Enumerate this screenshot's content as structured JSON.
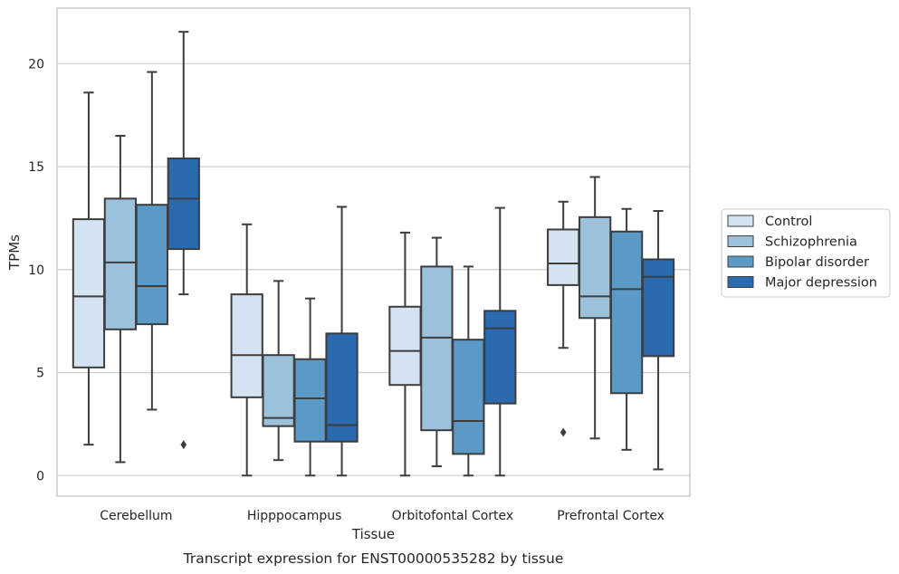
{
  "chart_data": {
    "type": "box",
    "xlabel": "Tissue",
    "ylabel": "TPMs",
    "caption": "Transcript expression for ENST00000535282 by tissue",
    "ylim": [
      -1,
      22.7
    ],
    "yticks": [
      0,
      5,
      10,
      15,
      20
    ],
    "grid": true,
    "legend_position": "right",
    "categories": [
      "Cerebellum",
      "Hipppocampus",
      "Orbitofontal Cortex",
      "Prefrontal Cortex"
    ],
    "series": [
      {
        "name": "Control",
        "color": "#d4e3f2",
        "boxes": [
          {
            "whisker_low": 1.5,
            "q1": 5.25,
            "median": 8.7,
            "q3": 12.45,
            "whisker_high": 18.6,
            "outliers": []
          },
          {
            "whisker_low": 0,
            "q1": 3.8,
            "median": 5.85,
            "q3": 8.8,
            "whisker_high": 12.2,
            "outliers": []
          },
          {
            "whisker_low": 0,
            "q1": 4.4,
            "median": 6.05,
            "q3": 8.2,
            "whisker_high": 11.8,
            "outliers": []
          },
          {
            "whisker_low": 6.2,
            "q1": 9.25,
            "median": 10.3,
            "q3": 11.95,
            "whisker_high": 13.3,
            "outliers": [
              2.1
            ]
          }
        ]
      },
      {
        "name": "Schizophrenia",
        "color": "#9cc2db",
        "boxes": [
          {
            "whisker_low": 0.65,
            "q1": 7.1,
            "median": 10.35,
            "q3": 13.45,
            "whisker_high": 16.5,
            "outliers": []
          },
          {
            "whisker_low": 0.75,
            "q1": 2.4,
            "median": 2.8,
            "q3": 5.85,
            "whisker_high": 9.45,
            "outliers": []
          },
          {
            "whisker_low": 0.45,
            "q1": 2.2,
            "median": 6.7,
            "q3": 10.15,
            "whisker_high": 11.55,
            "outliers": []
          },
          {
            "whisker_low": 1.8,
            "q1": 7.65,
            "median": 8.7,
            "q3": 12.55,
            "whisker_high": 14.5,
            "outliers": []
          }
        ]
      },
      {
        "name": "Bipolar disorder",
        "color": "#5b9ac7",
        "boxes": [
          {
            "whisker_low": 3.2,
            "q1": 7.35,
            "median": 9.2,
            "q3": 13.15,
            "whisker_high": 19.6,
            "outliers": []
          },
          {
            "whisker_low": 0,
            "q1": 1.65,
            "median": 3.75,
            "q3": 5.65,
            "whisker_high": 8.6,
            "outliers": []
          },
          {
            "whisker_low": 0,
            "q1": 1.05,
            "median": 2.65,
            "q3": 6.6,
            "whisker_high": 10.15,
            "outliers": []
          },
          {
            "whisker_low": 1.25,
            "q1": 4.0,
            "median": 9.05,
            "q3": 11.85,
            "whisker_high": 12.95,
            "outliers": []
          }
        ]
      },
      {
        "name": "Major depression",
        "color": "#2a6aaf",
        "boxes": [
          {
            "whisker_low": 8.8,
            "q1": 11.0,
            "median": 13.45,
            "q3": 15.4,
            "whisker_high": 21.55,
            "outliers": [
              1.5
            ]
          },
          {
            "whisker_low": 0,
            "q1": 1.65,
            "median": 2.45,
            "q3": 6.9,
            "whisker_high": 13.05,
            "outliers": []
          },
          {
            "whisker_low": 0,
            "q1": 3.5,
            "median": 7.15,
            "q3": 8.0,
            "whisker_high": 13.0,
            "outliers": []
          },
          {
            "whisker_low": 0.3,
            "q1": 5.8,
            "median": 9.65,
            "q3": 10.5,
            "whisker_high": 12.85,
            "outliers": []
          }
        ]
      }
    ]
  }
}
